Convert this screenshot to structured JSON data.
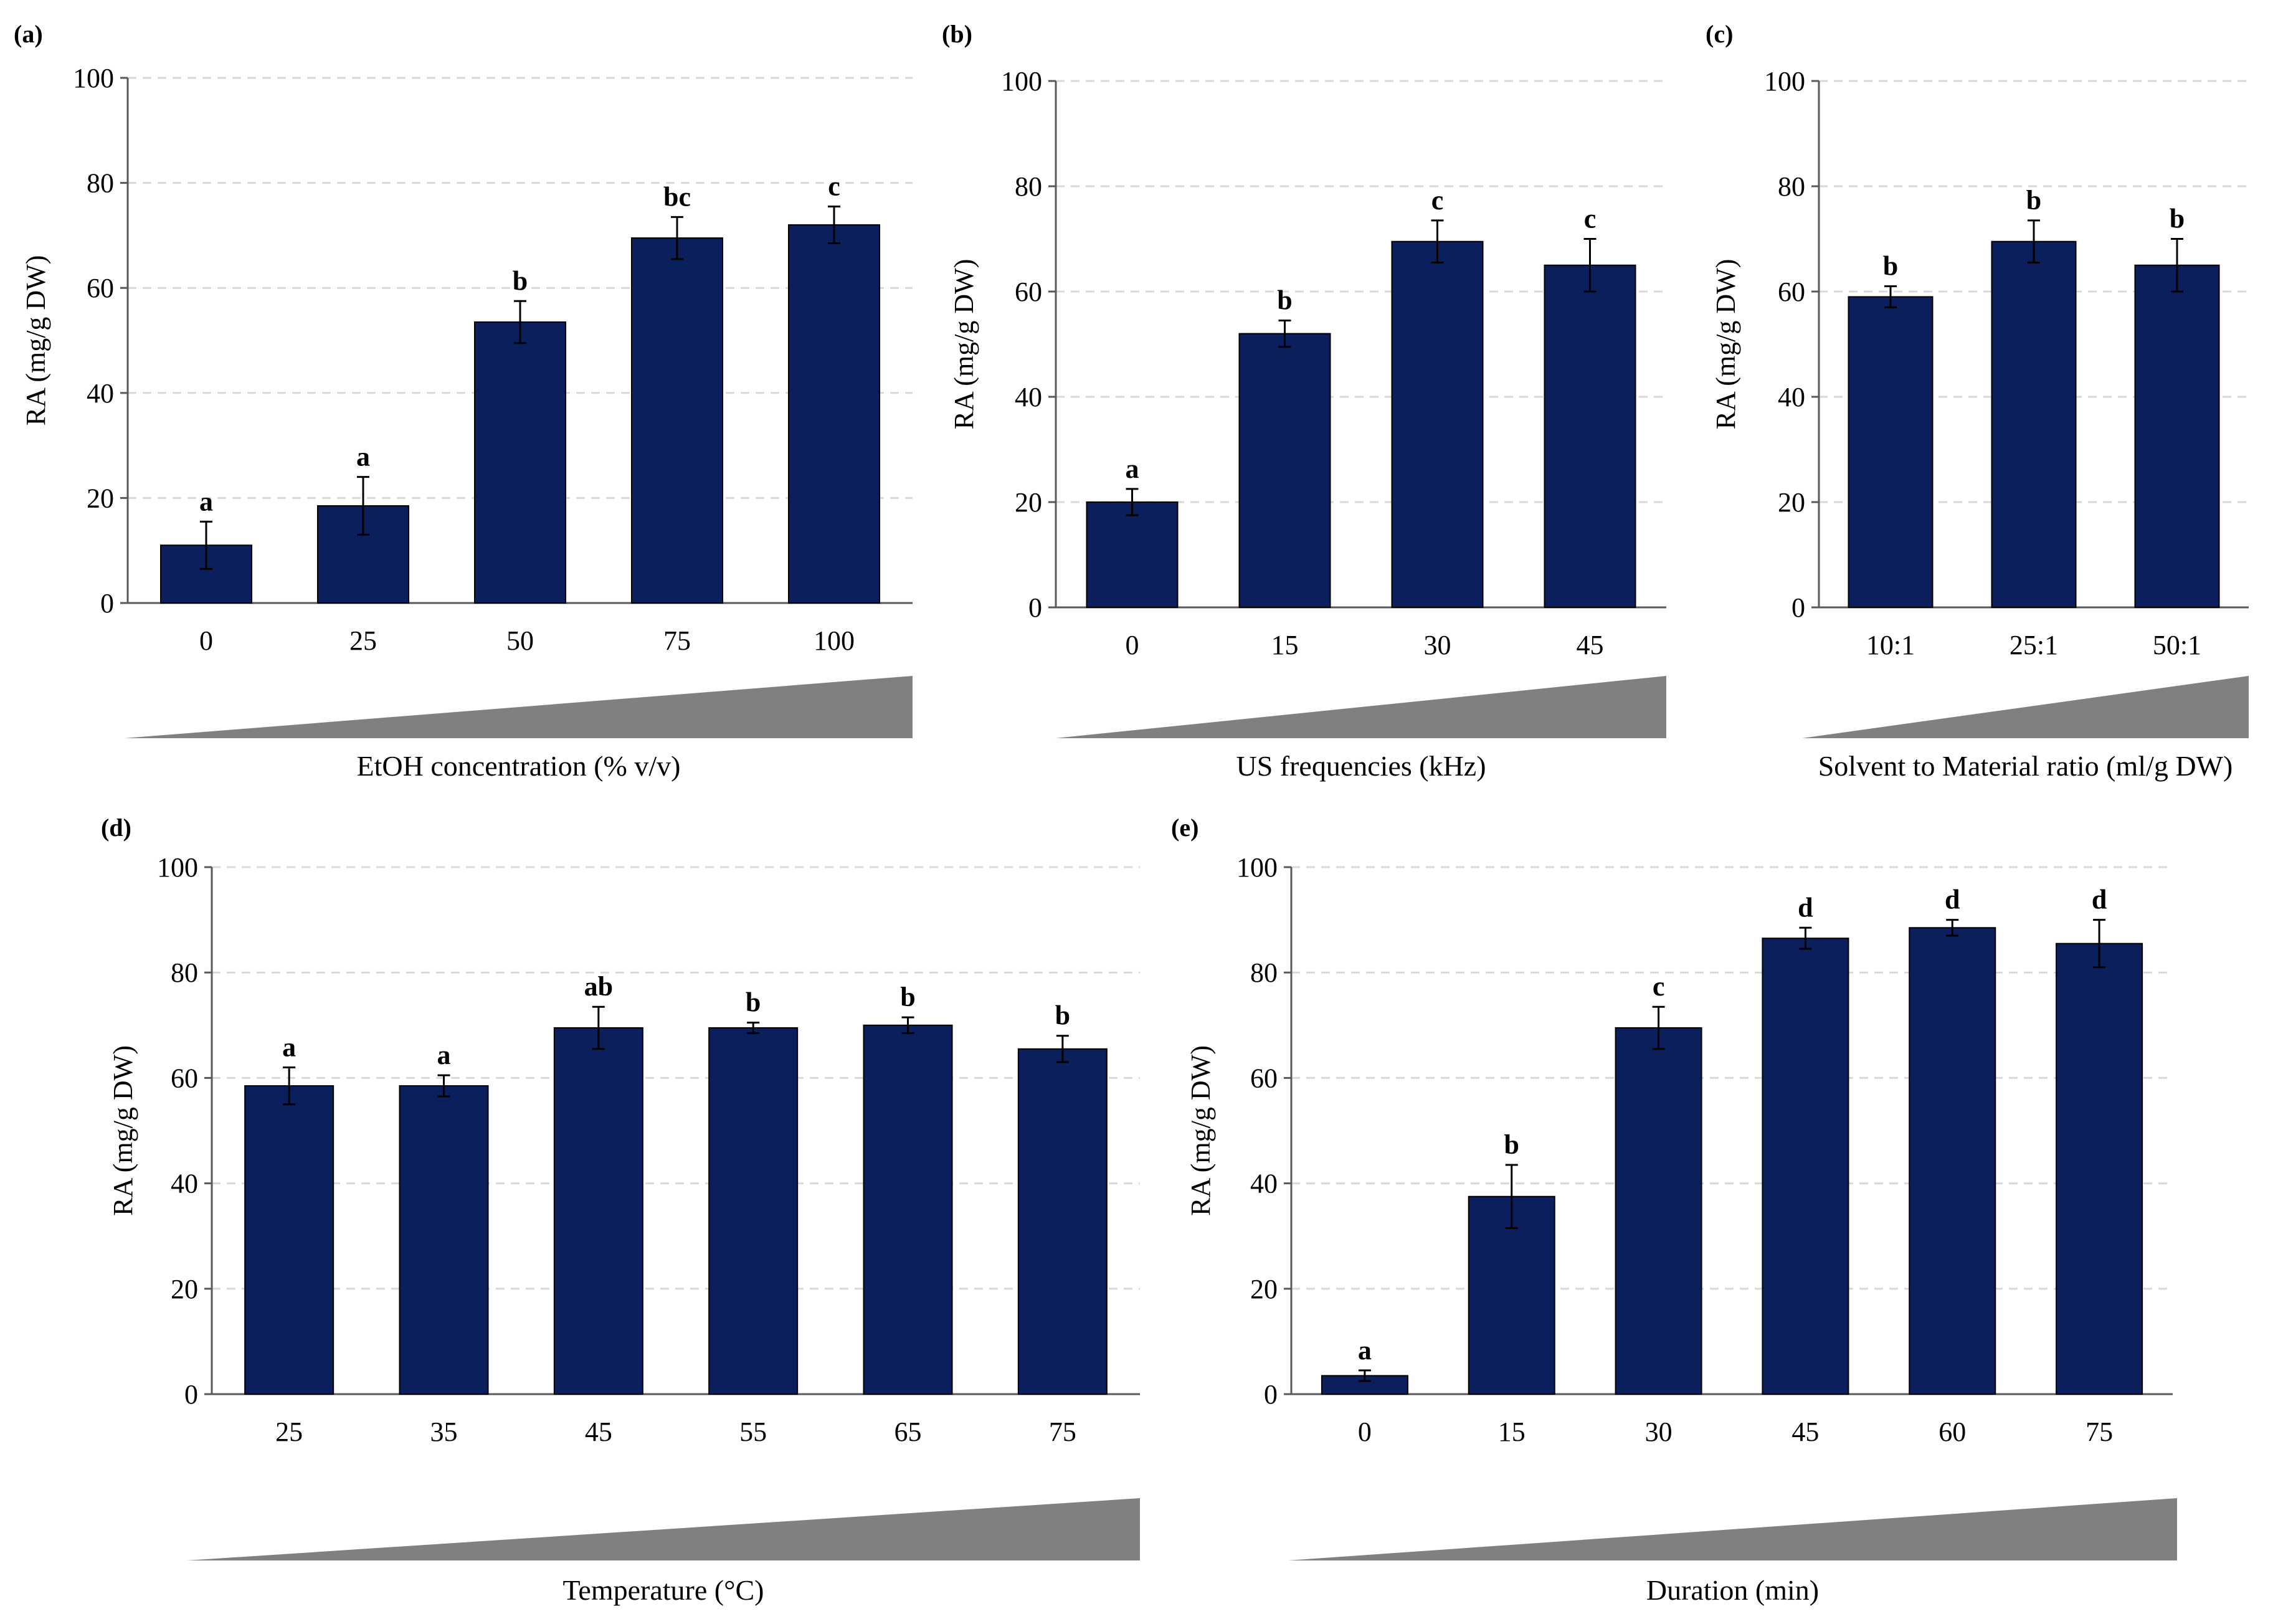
{
  "colors": {
    "bar": "#0b1f5c",
    "wedge": "#808080",
    "grid": "#d9d9d9",
    "axis": "#595959"
  },
  "chart_data": [
    {
      "id": "a",
      "panel_label": "(a)",
      "type": "bar",
      "categories": [
        "0",
        "25",
        "50",
        "75",
        "100"
      ],
      "values": [
        11,
        18.5,
        53.5,
        69.5,
        72
      ],
      "errors": [
        4.5,
        5.5,
        4,
        4,
        3.5
      ],
      "significance": [
        "a",
        "a",
        "b",
        "bc",
        "c"
      ],
      "ylabel": "RA (mg/g DW)",
      "xlabel": "EtOH concentration (% v/v)",
      "ylim": [
        0,
        100
      ],
      "yticks": [
        "0",
        "20",
        "40",
        "60",
        "80",
        "100"
      ],
      "grid": true
    },
    {
      "id": "b",
      "panel_label": "(b)",
      "type": "bar",
      "categories": [
        "0",
        "15",
        "30",
        "45"
      ],
      "values": [
        20,
        52,
        69.5,
        65
      ],
      "errors": [
        2.5,
        2.5,
        4,
        5
      ],
      "significance": [
        "a",
        "b",
        "c",
        "c"
      ],
      "ylabel": "RA (mg/g DW)",
      "xlabel": "US frequencies (kHz)",
      "ylim": [
        0,
        100
      ],
      "yticks": [
        "0",
        "20",
        "40",
        "60",
        "80",
        "100"
      ],
      "grid": true
    },
    {
      "id": "c",
      "panel_label": "(c)",
      "type": "bar",
      "categories": [
        "10:1",
        "25:1",
        "50:1"
      ],
      "values": [
        59,
        69.5,
        65
      ],
      "errors": [
        2,
        4,
        5
      ],
      "significance": [
        "b",
        "b",
        "b"
      ],
      "ylabel": "RA (mg/g DW)",
      "xlabel": "Solvent to Material ratio (ml/g DW)",
      "ylim": [
        0,
        100
      ],
      "yticks": [
        "0",
        "20",
        "40",
        "60",
        "80",
        "100"
      ],
      "grid": true
    },
    {
      "id": "d",
      "panel_label": "(d)",
      "type": "bar",
      "categories": [
        "25",
        "35",
        "45",
        "55",
        "65",
        "75"
      ],
      "values": [
        58.5,
        58.5,
        69.5,
        69.5,
        70,
        65.5
      ],
      "errors": [
        3.5,
        2,
        4,
        1,
        1.5,
        2.5
      ],
      "significance": [
        "a",
        "a",
        "ab",
        "b",
        "b",
        "b"
      ],
      "ylabel": "RA (mg/g DW)",
      "xlabel": "Temperature (°C)",
      "ylim": [
        0,
        100
      ],
      "yticks": [
        "0",
        "20",
        "40",
        "60",
        "80",
        "100"
      ],
      "grid": true
    },
    {
      "id": "e",
      "panel_label": "(e)",
      "type": "bar",
      "categories": [
        "0",
        "15",
        "30",
        "45",
        "60",
        "75"
      ],
      "values": [
        3.5,
        37.5,
        69.5,
        86.5,
        88.5,
        85.5
      ],
      "errors": [
        1,
        6,
        4,
        2,
        1.5,
        4.5
      ],
      "significance": [
        "a",
        "b",
        "c",
        "d",
        "d",
        "d"
      ],
      "ylabel": "RA (mg/g DW)",
      "xlabel": "Duration (min)",
      "ylim": [
        0,
        100
      ],
      "yticks": [
        "0",
        "20",
        "40",
        "60",
        "80",
        "100"
      ],
      "grid": true
    }
  ]
}
